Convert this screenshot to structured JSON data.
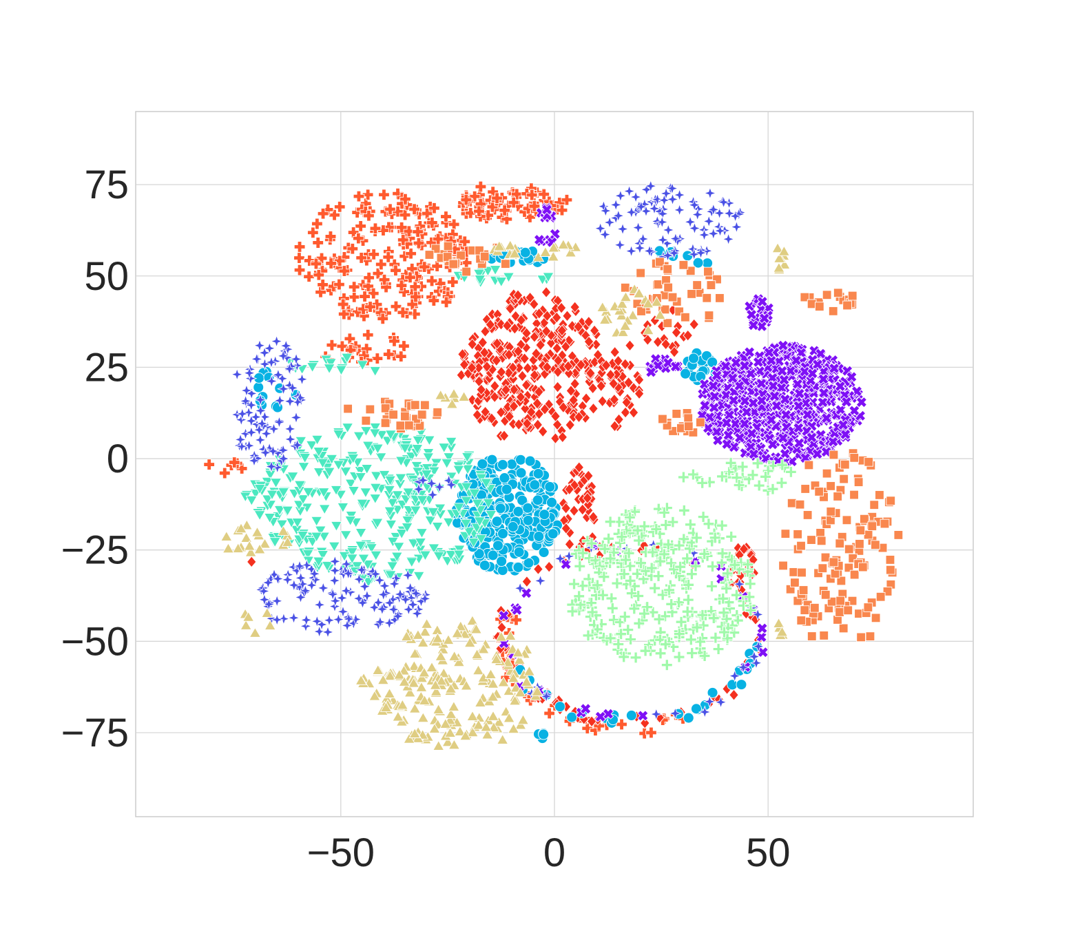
{
  "chart_data": {
    "type": "scatter",
    "title": "",
    "xlabel": "",
    "ylabel": "",
    "xlim": [
      -98,
      98
    ],
    "ylim": [
      -98,
      95
    ],
    "x_ticks": [
      -50,
      0,
      50
    ],
    "y_ticks": [
      75,
      50,
      25,
      0,
      -25,
      -50,
      -75
    ],
    "x_tick_labels": [
      "−50",
      "0",
      "50"
    ],
    "y_tick_labels": [
      "75",
      "50",
      "25",
      "0",
      "−25",
      "−50",
      "−75"
    ],
    "grid": true,
    "legend": "none",
    "style": {
      "grid_color": "#d6d6d6",
      "frame_color": "#cccccc",
      "marker_edge": "#ffffff"
    },
    "series": [
      {
        "marker": "cross",
        "color": "#ff5a2e",
        "regions": [
          {
            "shape": "ellipse",
            "cx": -40,
            "cy": 55,
            "rx": 20,
            "ry": 18,
            "n": 190
          },
          {
            "shape": "ellipse",
            "cx": -12,
            "cy": 70,
            "rx": 12,
            "ry": 5,
            "n": 45
          },
          {
            "shape": "ellipse",
            "cx": -5,
            "cy": 70,
            "rx": 10,
            "ry": 3,
            "n": 18
          },
          {
            "shape": "ellipse",
            "cx": -77,
            "cy": -2,
            "rx": 5,
            "ry": 2,
            "n": 6
          },
          {
            "shape": "ellipse",
            "cx": -45,
            "cy": 30,
            "rx": 12,
            "ry": 4,
            "n": 22
          },
          {
            "shape": "ring",
            "cx": 17,
            "cy": -50,
            "rx": 29,
            "ry": 24,
            "a0": 160,
            "a1": 300,
            "n": 40
          }
        ]
      },
      {
        "marker": "diamond",
        "color": "#f4311f",
        "regions": [
          {
            "shape": "ellipse",
            "cx": -5,
            "cy": 25,
            "rx": 17,
            "ry": 21,
            "n": 330
          },
          {
            "shape": "ellipse",
            "cx": 15,
            "cy": 20,
            "rx": 5,
            "ry": 13,
            "n": 40
          },
          {
            "shape": "ellipse",
            "cx": 6,
            "cy": -15,
            "rx": 4,
            "ry": 13,
            "n": 45
          },
          {
            "shape": "ellipse",
            "cx": 44,
            "cy": -30,
            "rx": 3,
            "ry": 6,
            "n": 25
          },
          {
            "shape": "ring",
            "cx": 18,
            "cy": -48,
            "rx": 30,
            "ry": 24,
            "a0": 0,
            "a1": 360,
            "n": 55
          },
          {
            "shape": "ellipse",
            "cx": 27,
            "cy": 35,
            "rx": 7,
            "ry": 6,
            "n": 18
          },
          {
            "shape": "ellipse",
            "cx": -71,
            "cy": -29,
            "rx": 1,
            "ry": 1,
            "n": 1
          }
        ]
      },
      {
        "marker": "circle",
        "color": "#08b2e3",
        "regions": [
          {
            "shape": "ellipse",
            "cx": -11,
            "cy": -15,
            "rx": 12,
            "ry": 16,
            "n": 280
          },
          {
            "shape": "ellipse",
            "cx": -3,
            "cy": -76,
            "rx": 1,
            "ry": 1,
            "n": 4
          },
          {
            "shape": "ellipse",
            "cx": -7,
            "cy": 55,
            "rx": 10,
            "ry": 2,
            "n": 20
          },
          {
            "shape": "ellipse",
            "cx": 34,
            "cy": 25,
            "rx": 4,
            "ry": 4,
            "n": 25
          },
          {
            "shape": "ellipse",
            "cx": -65,
            "cy": 20,
            "rx": 5,
            "ry": 8,
            "n": 12
          },
          {
            "shape": "ring",
            "cx": 18,
            "cy": -48,
            "rx": 30,
            "ry": 24,
            "a0": 200,
            "a1": 360,
            "n": 25
          },
          {
            "shape": "ellipse",
            "cx": 28,
            "cy": 55,
            "rx": 10,
            "ry": 3,
            "n": 8
          }
        ]
      },
      {
        "marker": "triangle-down",
        "color": "#4be8c0",
        "regions": [
          {
            "shape": "ellipse",
            "cx": -42,
            "cy": -12,
            "rx": 28,
            "ry": 22,
            "n": 340
          },
          {
            "shape": "ellipse",
            "cx": -67,
            "cy": -9,
            "rx": 10,
            "ry": 3,
            "n": 20
          },
          {
            "shape": "ellipse",
            "cx": -52,
            "cy": 25,
            "rx": 12,
            "ry": 3,
            "n": 15
          },
          {
            "shape": "ellipse",
            "cx": -12,
            "cy": 50,
            "rx": 12,
            "ry": 2,
            "n": 15
          }
        ]
      },
      {
        "marker": "x",
        "color": "#7e10f5",
        "regions": [
          {
            "shape": "ellipse",
            "cx": 53,
            "cy": 15,
            "rx": 19,
            "ry": 16,
            "n": 520
          },
          {
            "shape": "ellipse",
            "cx": 48,
            "cy": 40,
            "rx": 3,
            "ry": 4,
            "n": 20
          },
          {
            "shape": "ellipse",
            "cx": -2,
            "cy": 63,
            "rx": 3,
            "ry": 6,
            "n": 15
          },
          {
            "shape": "ellipse",
            "cx": 25,
            "cy": 25,
            "rx": 4,
            "ry": 3,
            "n": 12
          },
          {
            "shape": "ring",
            "cx": 18,
            "cy": -48,
            "rx": 30,
            "ry": 24,
            "a0": 0,
            "a1": 360,
            "n": 25
          }
        ]
      },
      {
        "marker": "star",
        "color": "#4a51e5",
        "regions": [
          {
            "shape": "ellipse",
            "cx": -67,
            "cy": 15,
            "rx": 9,
            "ry": 18,
            "n": 90
          },
          {
            "shape": "ellipse",
            "cx": -50,
            "cy": -38,
            "rx": 20,
            "ry": 10,
            "n": 120
          },
          {
            "shape": "ellipse",
            "cx": 27,
            "cy": 65,
            "rx": 17,
            "ry": 10,
            "n": 90
          },
          {
            "shape": "ring",
            "cx": 18,
            "cy": -48,
            "rx": 30,
            "ry": 24,
            "a0": 0,
            "a1": 360,
            "n": 25
          },
          {
            "shape": "ellipse",
            "cx": -28,
            "cy": -8,
            "rx": 5,
            "ry": 3,
            "n": 8
          }
        ]
      },
      {
        "marker": "square",
        "color": "#f9874e",
        "regions": [
          {
            "shape": "ellipse",
            "cx": 67,
            "cy": -25,
            "rx": 14,
            "ry": 28,
            "n": 130
          },
          {
            "shape": "ellipse",
            "cx": 65,
            "cy": 43,
            "rx": 8,
            "ry": 3,
            "n": 15
          },
          {
            "shape": "ellipse",
            "cx": 28,
            "cy": 45,
            "rx": 12,
            "ry": 10,
            "n": 40
          },
          {
            "shape": "ellipse",
            "cx": -38,
            "cy": 12,
            "rx": 13,
            "ry": 4,
            "n": 30
          },
          {
            "shape": "ellipse",
            "cx": -20,
            "cy": 55,
            "rx": 10,
            "ry": 4,
            "n": 20
          },
          {
            "shape": "ellipse",
            "cx": 30,
            "cy": 10,
            "rx": 5,
            "ry": 4,
            "n": 15
          }
        ]
      },
      {
        "marker": "plus-thin",
        "color": "#a0f9aa",
        "regions": [
          {
            "shape": "ellipse",
            "cx": 25,
            "cy": -35,
            "rx": 22,
            "ry": 22,
            "n": 300
          },
          {
            "shape": "ellipse",
            "cx": 45,
            "cy": -5,
            "rx": 15,
            "ry": 4,
            "n": 30
          }
        ]
      },
      {
        "marker": "triangle-up",
        "color": "#dfcd82",
        "regions": [
          {
            "shape": "ellipse",
            "cx": -23,
            "cy": -62,
            "rx": 20,
            "ry": 18,
            "n": 180
          },
          {
            "shape": "ellipse",
            "cx": -38,
            "cy": -60,
            "rx": 12,
            "ry": 5,
            "n": 25
          },
          {
            "shape": "ellipse",
            "cx": -70,
            "cy": -22,
            "rx": 10,
            "ry": 4,
            "n": 18
          },
          {
            "shape": "ellipse",
            "cx": -70,
            "cy": -44,
            "rx": 4,
            "ry": 4,
            "n": 6
          },
          {
            "shape": "ellipse",
            "cx": -5,
            "cy": 57,
            "rx": 12,
            "ry": 2,
            "n": 18
          },
          {
            "shape": "ellipse",
            "cx": 53,
            "cy": 55,
            "rx": 1,
            "ry": 5,
            "n": 8
          },
          {
            "shape": "ellipse",
            "cx": 18,
            "cy": 40,
            "rx": 7,
            "ry": 8,
            "n": 25
          },
          {
            "shape": "ellipse",
            "cx": -25,
            "cy": 16,
            "rx": 5,
            "ry": 2,
            "n": 6
          },
          {
            "shape": "ellipse",
            "cx": 53,
            "cy": -48,
            "rx": 2,
            "ry": 3,
            "n": 5
          }
        ]
      }
    ]
  }
}
